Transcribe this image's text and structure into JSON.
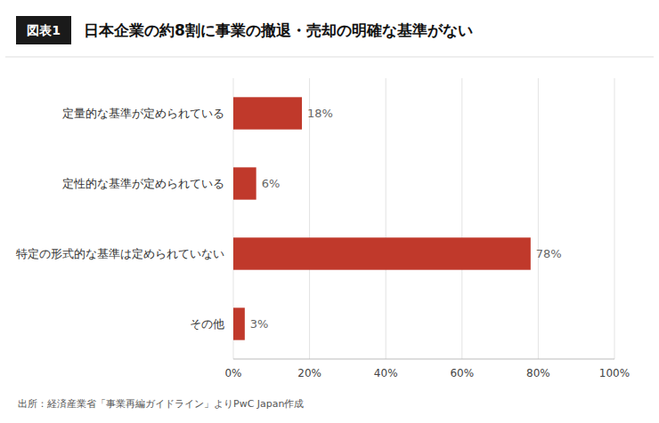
{
  "chart_data": {
    "type": "bar",
    "orientation": "horizontal",
    "title": "日本企業の約8割に事業の撤退・売却の明確な基準がない",
    "annotations": [
      "図表1",
      "出所：経済産業省「事業再編ガイドライン」よりPwC Japan作成"
    ],
    "categories": [
      "定量的な基準が定められている",
      "定性的な基準が定められている",
      "特定の形式的な基準は定められていない",
      "その他"
    ],
    "values": [
      18,
      6,
      78,
      3
    ],
    "value_labels": [
      "18%",
      "6%",
      "78%",
      "3%"
    ],
    "data_labels": true,
    "color": "#C0392B",
    "xlim": [
      0,
      100
    ],
    "xticks": [
      {
        "value": 0,
        "label": "0%"
      },
      {
        "value": 20,
        "label": "20%"
      },
      {
        "value": 40,
        "label": "40%"
      },
      {
        "value": 60,
        "label": "60%"
      },
      {
        "value": 80,
        "label": "80%"
      },
      {
        "value": 100,
        "label": "100%"
      }
    ],
    "grid": true
  }
}
